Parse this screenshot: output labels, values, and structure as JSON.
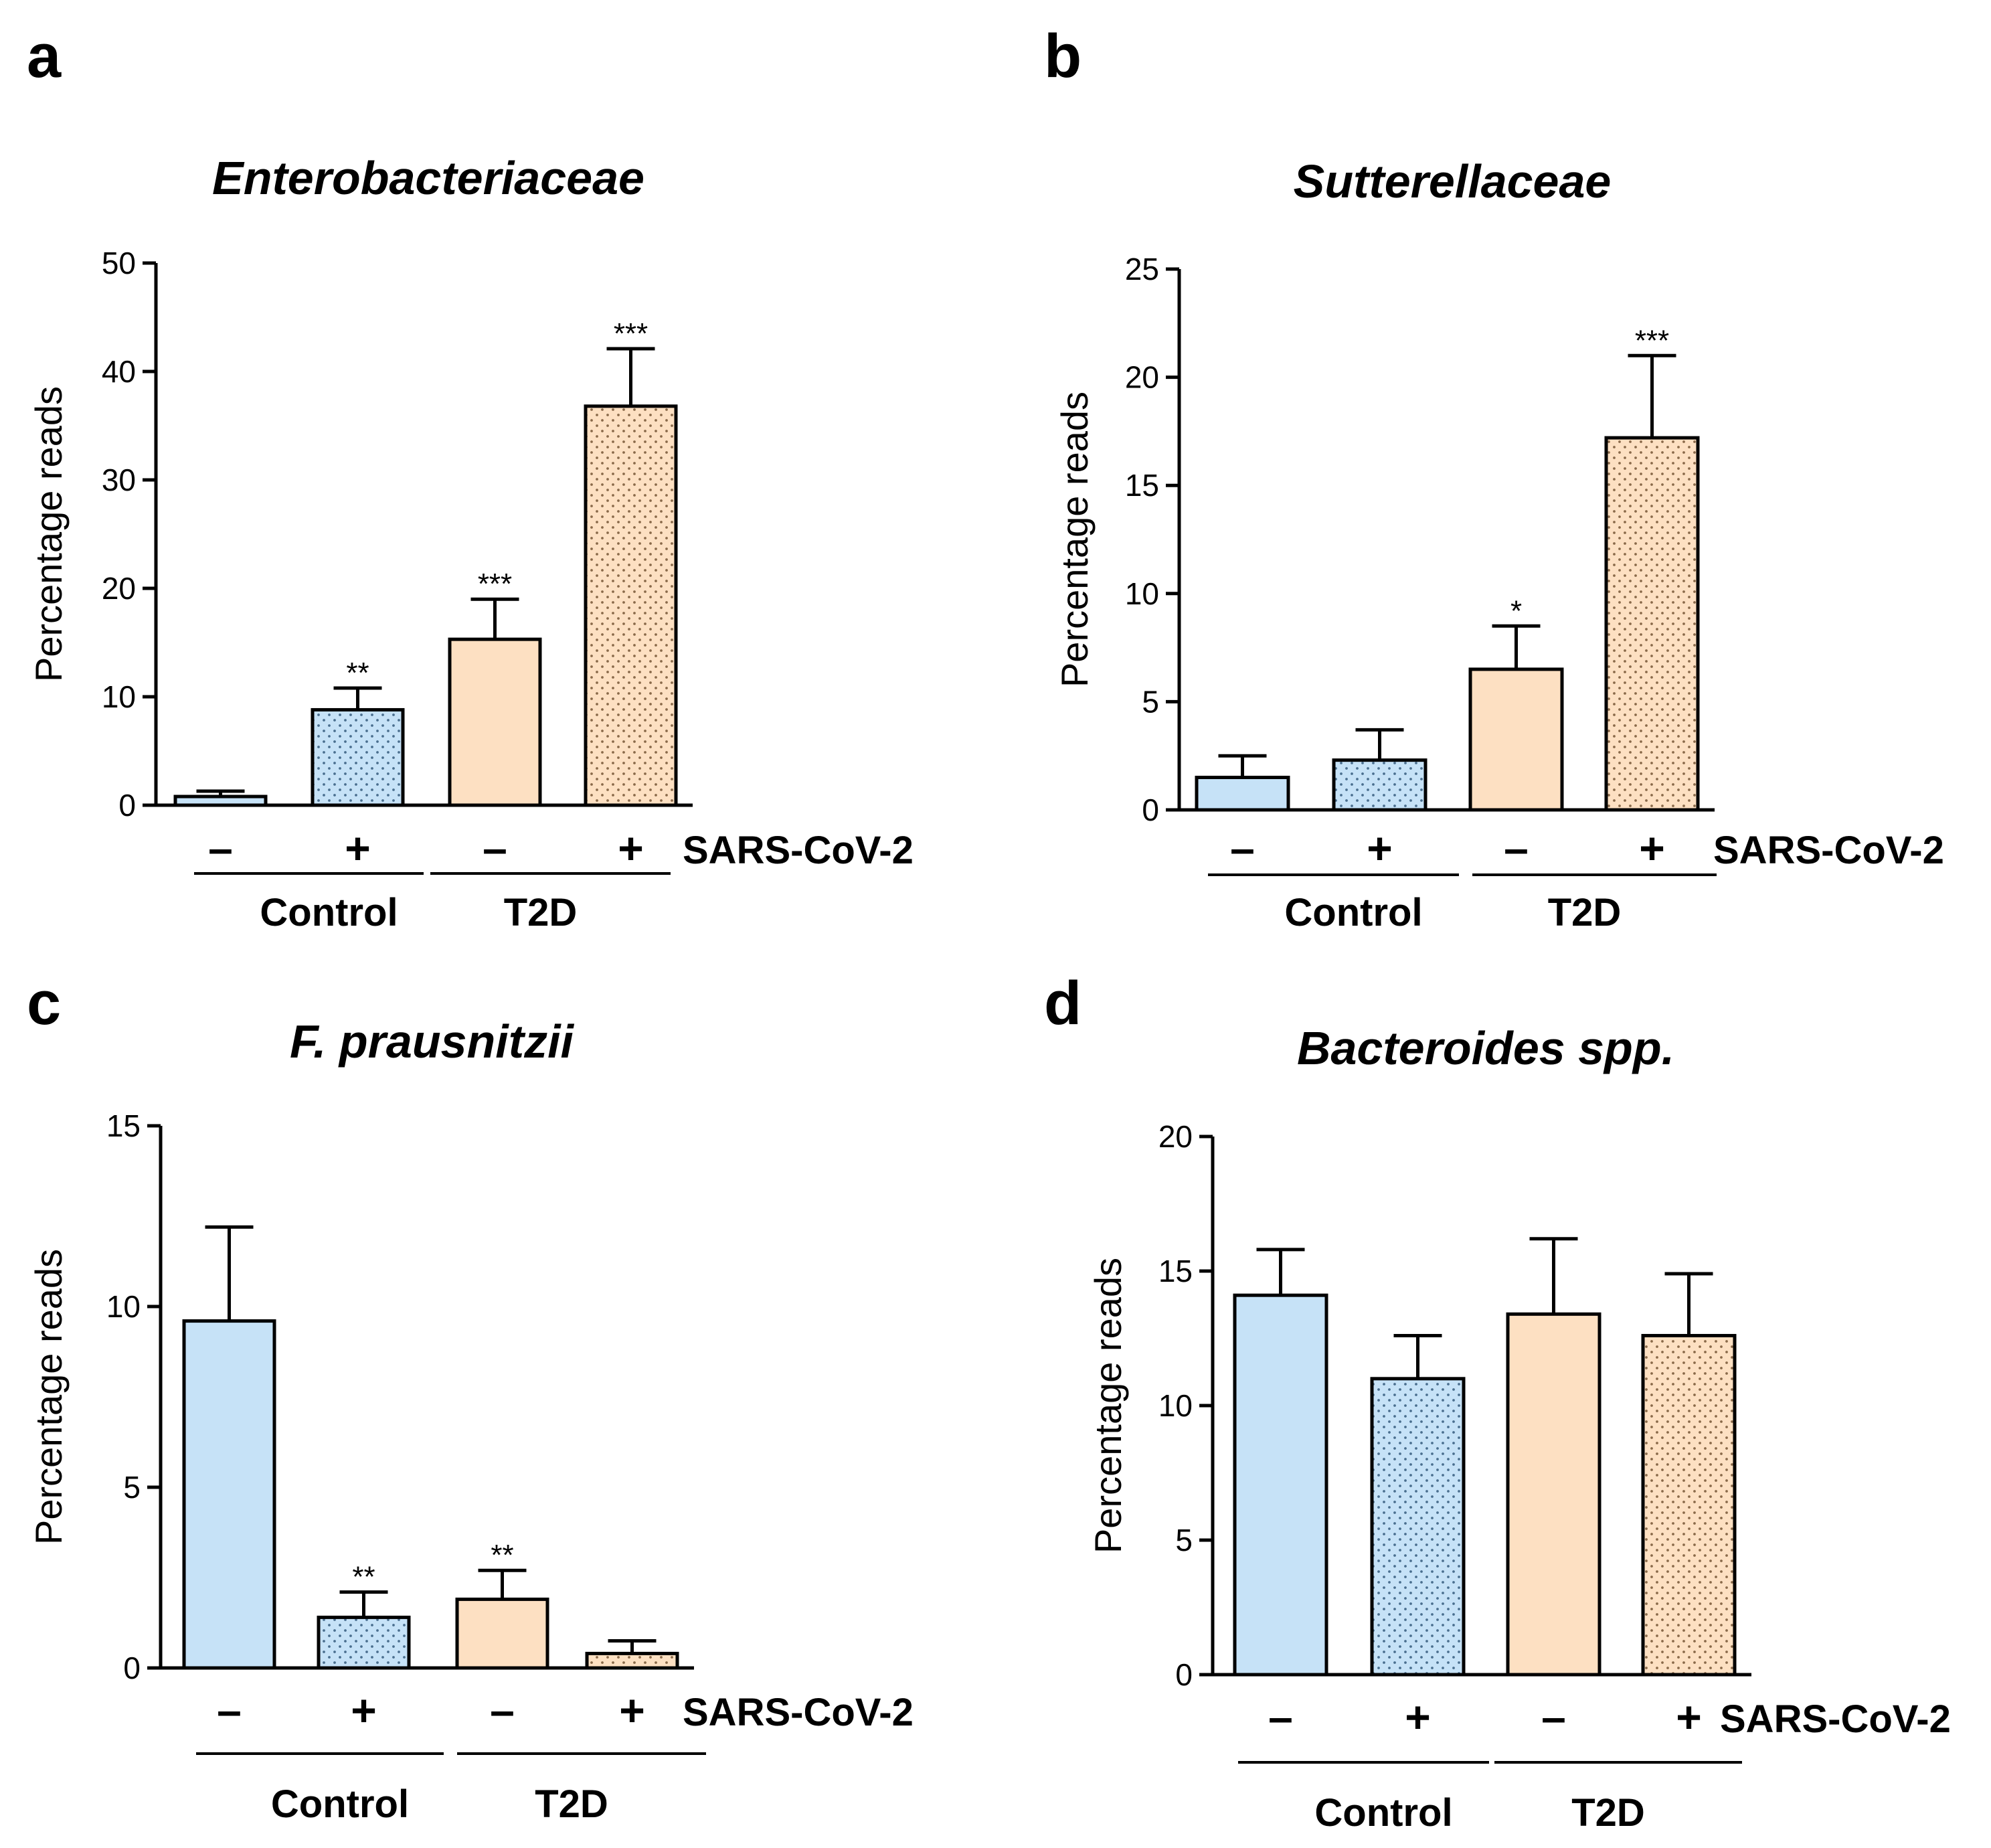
{
  "colors": {
    "control": "#c6e2f7",
    "t2d": "#fde0c2",
    "stroke": "#000000"
  },
  "factor_label": "SARS-CoV-2",
  "group_labels": [
    "Control",
    "T2D"
  ],
  "chart_data": [
    {
      "panel": "a",
      "type": "bar",
      "title": "Enterobacteriaceae",
      "ylabel": "Percentage reads",
      "ylim": [
        0,
        50
      ],
      "yticks": [
        0,
        10,
        20,
        30,
        40,
        50
      ],
      "categories": [
        "–",
        "+",
        "–",
        "+"
      ],
      "groups": [
        "Control",
        "Control",
        "T2D",
        "T2D"
      ],
      "hatched": [
        false,
        true,
        false,
        true
      ],
      "values": [
        0.8,
        8.8,
        15.3,
        36.8
      ],
      "errors": [
        0.5,
        2.0,
        3.7,
        5.3
      ],
      "significance": [
        "",
        "**",
        "***",
        "***"
      ]
    },
    {
      "panel": "b",
      "type": "bar",
      "title": "Sutterellaceae",
      "ylabel": "Percentage reads",
      "ylim": [
        0,
        25
      ],
      "yticks": [
        0,
        5,
        10,
        15,
        20,
        25
      ],
      "categories": [
        "–",
        "+",
        "–",
        "+"
      ],
      "groups": [
        "Control",
        "Control",
        "T2D",
        "T2D"
      ],
      "hatched": [
        false,
        true,
        false,
        true
      ],
      "values": [
        1.5,
        2.3,
        6.5,
        17.2
      ],
      "errors": [
        1.0,
        1.4,
        2.0,
        3.8
      ],
      "significance": [
        "",
        "",
        "*",
        "***"
      ]
    },
    {
      "panel": "c",
      "type": "bar",
      "title": "F. prausnitzii",
      "ylabel": "Percentage reads",
      "ylim": [
        0,
        15
      ],
      "yticks": [
        0,
        5,
        10,
        15
      ],
      "categories": [
        "–",
        "+",
        "–",
        "+"
      ],
      "groups": [
        "Control",
        "Control",
        "T2D",
        "T2D"
      ],
      "hatched": [
        false,
        true,
        false,
        true
      ],
      "values": [
        9.6,
        1.4,
        1.9,
        0.4
      ],
      "errors": [
        2.6,
        0.7,
        0.8,
        0.35
      ],
      "significance": [
        "",
        "**",
        "**",
        ""
      ]
    },
    {
      "panel": "d",
      "type": "bar",
      "title": "Bacteroides spp.",
      "ylabel": "Percentage reads",
      "ylim": [
        0,
        20
      ],
      "yticks": [
        0,
        5,
        10,
        15,
        20
      ],
      "categories": [
        "–",
        "+",
        "–",
        "+"
      ],
      "groups": [
        "Control",
        "Control",
        "T2D",
        "T2D"
      ],
      "hatched": [
        false,
        true,
        false,
        true
      ],
      "values": [
        14.1,
        11.0,
        13.4,
        12.6
      ],
      "errors": [
        1.7,
        1.6,
        2.8,
        2.3
      ],
      "significance": [
        "",
        "",
        "",
        ""
      ]
    }
  ]
}
